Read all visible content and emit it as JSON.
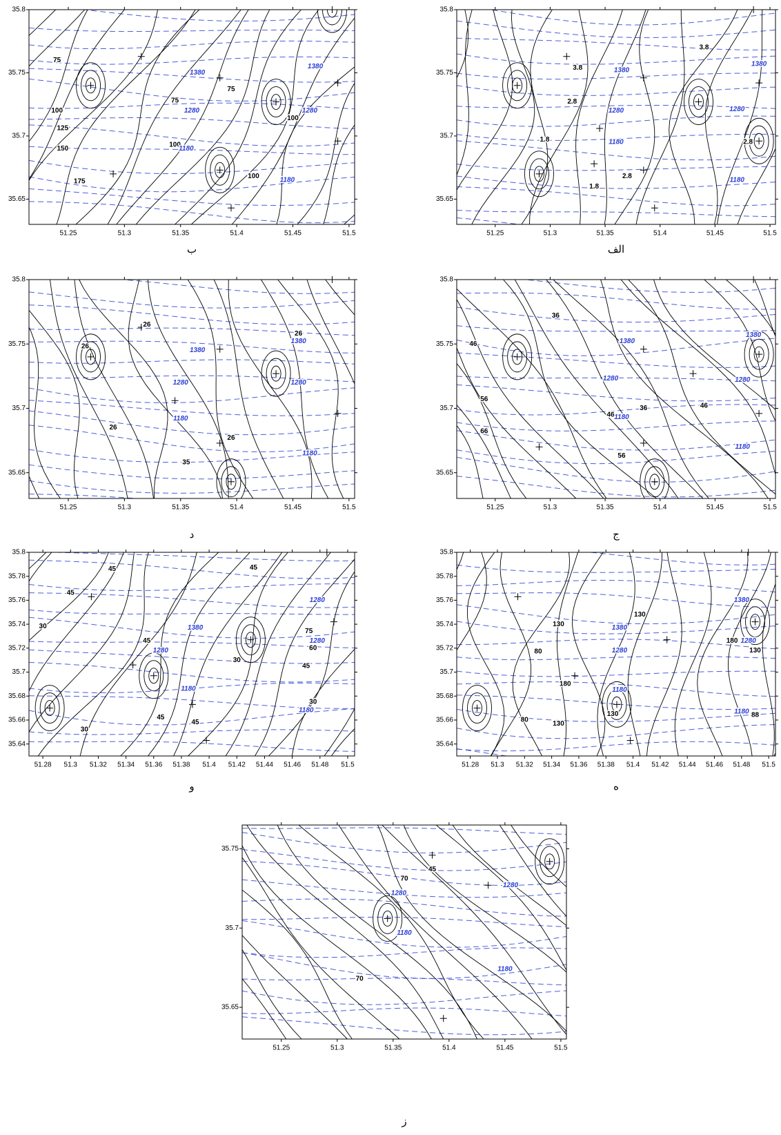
{
  "chart_data": [
    {
      "type": "contour",
      "label": "الف",
      "xlim": [
        51.215,
        51.505
      ],
      "ylim": [
        35.63,
        35.8
      ],
      "xticks": [
        51.25,
        51.3,
        51.35,
        51.4,
        51.45,
        51.5
      ],
      "yticks": [
        35.65,
        35.7,
        35.75,
        35.8
      ],
      "contour_color": "#000000",
      "elevation_color": "#2b3fd6",
      "wells": {
        "x": [
          51.27,
          51.315,
          51.385,
          51.435,
          51.49,
          51.345,
          51.29,
          51.385,
          51.395,
          51.49,
          51.485,
          51.34
        ],
        "y": [
          35.74,
          35.763,
          35.746,
          35.727,
          35.742,
          35.706,
          35.67,
          35.673,
          35.643,
          35.696,
          35.8,
          35.678
        ]
      },
      "labels": [
        {
          "value": 3.8,
          "x": 51.325,
          "y": 35.754
        },
        {
          "value": 3.8,
          "x": 51.44,
          "y": 35.77
        },
        {
          "value": 2.8,
          "x": 51.32,
          "y": 35.727
        },
        {
          "value": 1.8,
          "x": 51.295,
          "y": 35.697
        },
        {
          "value": 1.8,
          "x": 51.34,
          "y": 35.66
        },
        {
          "value": 2.8,
          "x": 51.37,
          "y": 35.668
        },
        {
          "value": 2.8,
          "x": 51.48,
          "y": 35.695
        }
      ],
      "elevation_labels": [
        {
          "value": 1380,
          "x": 51.365,
          "y": 35.752
        },
        {
          "value": 1380,
          "x": 51.49,
          "y": 35.757
        },
        {
          "value": 1280,
          "x": 51.36,
          "y": 35.72
        },
        {
          "value": 1280,
          "x": 51.47,
          "y": 35.721
        },
        {
          "value": 1180,
          "x": 51.36,
          "y": 35.695
        },
        {
          "value": 1180,
          "x": 51.47,
          "y": 35.665
        }
      ]
    },
    {
      "type": "contour",
      "label": "ب",
      "xlim": [
        51.215,
        51.505
      ],
      "ylim": [
        35.63,
        35.8
      ],
      "xticks": [
        51.25,
        51.3,
        51.35,
        51.4,
        51.45,
        51.5
      ],
      "yticks": [
        35.65,
        35.7,
        35.75,
        35.8
      ],
      "contour_color": "#000000",
      "elevation_color": "#2b3fd6",
      "wells": {
        "x": [
          51.27,
          51.315,
          51.385,
          51.435,
          51.49,
          51.29,
          51.385,
          51.395,
          51.49,
          51.485
        ],
        "y": [
          35.74,
          35.763,
          35.746,
          35.727,
          35.742,
          35.67,
          35.673,
          35.643,
          35.696,
          35.8
        ]
      },
      "labels": [
        {
          "value": 75,
          "x": 51.24,
          "y": 35.76
        },
        {
          "value": 75,
          "x": 51.345,
          "y": 35.728
        },
        {
          "value": 75,
          "x": 51.395,
          "y": 35.737
        },
        {
          "value": 100,
          "x": 51.24,
          "y": 35.72
        },
        {
          "value": 100,
          "x": 51.45,
          "y": 35.714
        },
        {
          "value": 100,
          "x": 51.345,
          "y": 35.693
        },
        {
          "value": 100,
          "x": 51.415,
          "y": 35.668
        },
        {
          "value": 125,
          "x": 51.245,
          "y": 35.706
        },
        {
          "value": 150,
          "x": 51.245,
          "y": 35.69
        },
        {
          "value": 175,
          "x": 51.26,
          "y": 35.664
        }
      ],
      "elevation_labels": [
        {
          "value": 1380,
          "x": 51.365,
          "y": 35.75
        },
        {
          "value": 1380,
          "x": 51.47,
          "y": 35.755
        },
        {
          "value": 1280,
          "x": 51.36,
          "y": 35.72
        },
        {
          "value": 1280,
          "x": 51.465,
          "y": 35.72
        },
        {
          "value": 1180,
          "x": 51.355,
          "y": 35.69
        },
        {
          "value": 1180,
          "x": 51.445,
          "y": 35.665
        }
      ]
    },
    {
      "type": "contour",
      "label": "ج",
      "xlim": [
        51.215,
        51.505
      ],
      "ylim": [
        35.63,
        35.8
      ],
      "xticks": [
        51.25,
        51.3,
        51.35,
        51.4,
        51.45,
        51.5
      ],
      "yticks": [
        35.65,
        35.7,
        35.75,
        35.8
      ],
      "contour_color": "#000000",
      "elevation_color": "#2b3fd6",
      "wells": {
        "x": [
          51.27,
          51.385,
          51.43,
          51.49,
          51.29,
          51.385,
          51.395,
          51.49,
          51.485
        ],
        "y": [
          35.74,
          35.746,
          35.727,
          35.742,
          35.67,
          35.673,
          35.643,
          35.696,
          35.8
        ]
      },
      "labels": [
        {
          "value": 36,
          "x": 51.305,
          "y": 35.772
        },
        {
          "value": 36,
          "x": 51.385,
          "y": 35.7
        },
        {
          "value": 46,
          "x": 51.23,
          "y": 35.75
        },
        {
          "value": 46,
          "x": 51.355,
          "y": 35.695
        },
        {
          "value": 46,
          "x": 51.44,
          "y": 35.702
        },
        {
          "value": 56,
          "x": 51.24,
          "y": 35.707
        },
        {
          "value": 56,
          "x": 51.365,
          "y": 35.663
        },
        {
          "value": 66,
          "x": 51.24,
          "y": 35.682
        }
      ],
      "elevation_labels": [
        {
          "value": 1380,
          "x": 51.37,
          "y": 35.752
        },
        {
          "value": 1380,
          "x": 51.485,
          "y": 35.757
        },
        {
          "value": 1280,
          "x": 51.355,
          "y": 35.723
        },
        {
          "value": 1280,
          "x": 51.475,
          "y": 35.722
        },
        {
          "value": 1180,
          "x": 51.365,
          "y": 35.693
        },
        {
          "value": 1180,
          "x": 51.475,
          "y": 35.67
        }
      ]
    },
    {
      "type": "contour",
      "label": "د",
      "xlim": [
        51.215,
        51.505
      ],
      "ylim": [
        35.63,
        35.8
      ],
      "xticks": [
        51.25,
        51.3,
        51.35,
        51.4,
        51.45,
        51.5
      ],
      "yticks": [
        35.65,
        35.7,
        35.75,
        35.8
      ],
      "contour_color": "#000000",
      "elevation_color": "#2b3fd6",
      "wells": {
        "x": [
          51.27,
          51.315,
          51.385,
          51.435,
          51.345,
          51.385,
          51.395,
          51.49,
          51.485
        ],
        "y": [
          35.74,
          35.763,
          35.746,
          35.727,
          35.706,
          35.673,
          35.643,
          35.696,
          35.8
        ]
      },
      "labels": [
        {
          "value": 26,
          "x": 51.265,
          "y": 35.748
        },
        {
          "value": 26,
          "x": 51.32,
          "y": 35.765
        },
        {
          "value": 26,
          "x": 51.455,
          "y": 35.758
        },
        {
          "value": 26,
          "x": 51.29,
          "y": 35.685
        },
        {
          "value": 26,
          "x": 51.395,
          "y": 35.677
        },
        {
          "value": 35,
          "x": 51.355,
          "y": 35.658
        }
      ],
      "elevation_labels": [
        {
          "value": 1380,
          "x": 51.365,
          "y": 35.745
        },
        {
          "value": 1380,
          "x": 51.455,
          "y": 35.752
        },
        {
          "value": 1280,
          "x": 51.35,
          "y": 35.72
        },
        {
          "value": 1280,
          "x": 51.455,
          "y": 35.72
        },
        {
          "value": 1180,
          "x": 51.35,
          "y": 35.692
        },
        {
          "value": 1180,
          "x": 51.465,
          "y": 35.665
        }
      ]
    },
    {
      "type": "contour",
      "label": "ه",
      "xlim": [
        51.27,
        51.505
      ],
      "ylim": [
        35.63,
        35.8
      ],
      "xticks": [
        51.28,
        51.3,
        51.32,
        51.34,
        51.36,
        51.38,
        51.4,
        51.42,
        51.44,
        51.46,
        51.48,
        51.5
      ],
      "yticks": [
        35.64,
        35.66,
        35.68,
        35.7,
        35.72,
        35.74,
        35.76,
        35.78,
        35.8
      ],
      "contour_color": "#000000",
      "elevation_color": "#2b3fd6",
      "wells": {
        "x": [
          51.285,
          51.315,
          51.357,
          51.388,
          51.398,
          51.425,
          51.49,
          51.485
        ],
        "y": [
          35.67,
          35.763,
          35.697,
          35.673,
          35.643,
          35.727,
          35.742,
          35.8
        ]
      },
      "labels": [
        {
          "value": 130,
          "x": 51.345,
          "y": 35.74
        },
        {
          "value": 130,
          "x": 51.405,
          "y": 35.748
        },
        {
          "value": 130,
          "x": 51.49,
          "y": 35.718
        },
        {
          "value": 130,
          "x": 51.345,
          "y": 35.657
        },
        {
          "value": 130,
          "x": 51.385,
          "y": 35.665
        },
        {
          "value": 80,
          "x": 51.33,
          "y": 35.717
        },
        {
          "value": 80,
          "x": 51.32,
          "y": 35.66
        },
        {
          "value": 180,
          "x": 51.35,
          "y": 35.69
        },
        {
          "value": 180,
          "x": 51.473,
          "y": 35.726
        },
        {
          "value": 88,
          "x": 51.49,
          "y": 35.664
        }
      ],
      "elevation_labels": [
        {
          "value": 1380,
          "x": 51.39,
          "y": 35.737
        },
        {
          "value": 1380,
          "x": 51.48,
          "y": 35.76
        },
        {
          "value": 1280,
          "x": 51.39,
          "y": 35.718
        },
        {
          "value": 1280,
          "x": 51.485,
          "y": 35.726
        },
        {
          "value": 1180,
          "x": 51.39,
          "y": 35.685
        },
        {
          "value": 1180,
          "x": 51.48,
          "y": 35.667
        }
      ]
    },
    {
      "type": "contour",
      "label": "و",
      "xlim": [
        51.27,
        51.505
      ],
      "ylim": [
        35.63,
        35.8
      ],
      "xticks": [
        51.28,
        51.3,
        51.32,
        51.34,
        51.36,
        51.38,
        51.4,
        51.42,
        51.44,
        51.46,
        51.48,
        51.5
      ],
      "yticks": [
        35.64,
        35.66,
        35.68,
        35.7,
        35.72,
        35.74,
        35.76,
        35.78,
        35.8
      ],
      "contour_color": "#000000",
      "elevation_color": "#2b3fd6",
      "wells": {
        "x": [
          51.285,
          51.315,
          51.345,
          51.36,
          51.388,
          51.398,
          51.43,
          51.49,
          51.485
        ],
        "y": [
          35.67,
          35.763,
          35.706,
          35.697,
          35.673,
          35.643,
          35.727,
          35.742,
          35.8
        ]
      },
      "labels": [
        {
          "value": 45,
          "x": 51.3,
          "y": 35.766
        },
        {
          "value": 45,
          "x": 51.33,
          "y": 35.786
        },
        {
          "value": 45,
          "x": 51.432,
          "y": 35.787
        },
        {
          "value": 45,
          "x": 51.355,
          "y": 35.726
        },
        {
          "value": 45,
          "x": 51.365,
          "y": 35.662
        },
        {
          "value": 45,
          "x": 51.39,
          "y": 35.658
        },
        {
          "value": 45,
          "x": 51.47,
          "y": 35.705
        },
        {
          "value": 30,
          "x": 51.28,
          "y": 35.738
        },
        {
          "value": 30,
          "x": 51.42,
          "y": 35.71
        },
        {
          "value": 30,
          "x": 51.31,
          "y": 35.652
        },
        {
          "value": 30,
          "x": 51.475,
          "y": 35.675
        },
        {
          "value": 75,
          "x": 51.472,
          "y": 35.734
        },
        {
          "value": 60,
          "x": 51.475,
          "y": 35.72
        }
      ],
      "elevation_labels": [
        {
          "value": 1380,
          "x": 51.39,
          "y": 35.737
        },
        {
          "value": 1280,
          "x": 51.478,
          "y": 35.76
        },
        {
          "value": 1280,
          "x": 51.365,
          "y": 35.718
        },
        {
          "value": 1280,
          "x": 51.478,
          "y": 35.726
        },
        {
          "value": 1180,
          "x": 51.385,
          "y": 35.686
        },
        {
          "value": 1180,
          "x": 51.47,
          "y": 35.668
        }
      ]
    },
    {
      "type": "contour",
      "label": "ز",
      "xlim": [
        51.215,
        51.505
      ],
      "ylim": [
        35.63,
        35.765
      ],
      "xticks": [
        51.25,
        51.3,
        51.35,
        51.4,
        51.45,
        51.5
      ],
      "yticks": [
        35.65,
        35.7,
        35.75
      ],
      "contour_color": "#000000",
      "elevation_color": "#2b3fd6",
      "wells": {
        "x": [
          51.345,
          51.385,
          51.435,
          51.49,
          51.395
        ],
        "y": [
          35.706,
          35.746,
          35.727,
          35.742,
          35.643
        ]
      },
      "labels": [
        {
          "value": 70,
          "x": 51.36,
          "y": 35.731
        },
        {
          "value": 70,
          "x": 51.32,
          "y": 35.668
        },
        {
          "value": 45,
          "x": 51.385,
          "y": 35.737
        }
      ],
      "elevation_labels": [
        {
          "value": 1280,
          "x": 51.355,
          "y": 35.722
        },
        {
          "value": 1280,
          "x": 51.455,
          "y": 35.727
        },
        {
          "value": 1180,
          "x": 51.36,
          "y": 35.697
        },
        {
          "value": 1180,
          "x": 51.45,
          "y": 35.674
        }
      ]
    }
  ]
}
